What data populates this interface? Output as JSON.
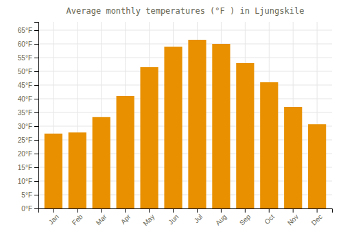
{
  "chart_data": {
    "type": "bar",
    "title": "Average monthly temperatures (°F ) in Ljungskile",
    "categories": [
      "Jan",
      "Feb",
      "Mar",
      "Apr",
      "May",
      "Jun",
      "Jul",
      "Aug",
      "Sep",
      "Oct",
      "Nov",
      "Dec"
    ],
    "values": [
      27.3,
      27.7,
      33.3,
      41.0,
      51.5,
      59.0,
      61.5,
      60.0,
      53.0,
      46.0,
      37.0,
      30.7
    ],
    "color": "#E89000",
    "ylim": [
      0,
      68
    ],
    "yticks": [
      {
        "value": 0,
        "label": "0°F"
      },
      {
        "value": 5,
        "label": "5°F"
      },
      {
        "value": 10,
        "label": "10°F"
      },
      {
        "value": 15,
        "label": "15°F"
      },
      {
        "value": 20,
        "label": "20°F"
      },
      {
        "value": 25,
        "label": "25°F"
      },
      {
        "value": 30,
        "label": "30°F"
      },
      {
        "value": 35,
        "label": "35°F"
      },
      {
        "value": 40,
        "label": "40°F"
      },
      {
        "value": 45,
        "label": "45°F"
      },
      {
        "value": 50,
        "label": "50°F"
      },
      {
        "value": 55,
        "label": "55°F"
      },
      {
        "value": 60,
        "label": "60°F"
      },
      {
        "value": 65,
        "label": "65°F"
      }
    ],
    "grid": true
  }
}
